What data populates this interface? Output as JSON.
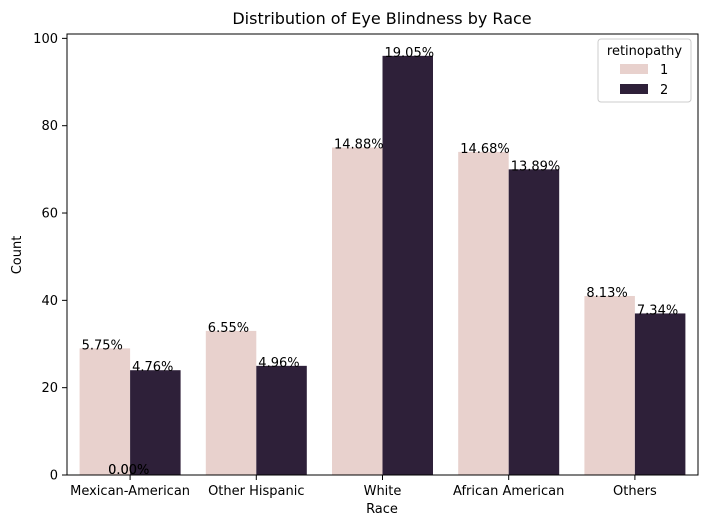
{
  "chart_data": {
    "type": "bar",
    "title": "Distribution of Eye Blindness by Race",
    "xlabel": "Race",
    "ylabel": "Count",
    "ylim": [
      0,
      101
    ],
    "yticks": [
      0,
      20,
      40,
      60,
      80,
      100
    ],
    "categories": [
      "Mexican-American",
      "Other Hispanic",
      "White",
      "African American",
      "Others"
    ],
    "series": [
      {
        "name": "1",
        "color": "#e8d1cd",
        "values": [
          29,
          33,
          75,
          74,
          41
        ],
        "labels": [
          "5.75%",
          "6.55%",
          "14.88%",
          "14.68%",
          "8.13%"
        ]
      },
      {
        "name": "2",
        "color": "#2e2039",
        "values": [
          24,
          25,
          96,
          70,
          37
        ],
        "labels": [
          "4.76%",
          "4.96%",
          "19.05%",
          "13.89%",
          "7.34%"
        ]
      }
    ],
    "extra_labels": [
      {
        "category_index": 0,
        "text": "0.00%"
      },
      {
        "category_index": 0,
        "text": "0.00%"
      }
    ],
    "legend": {
      "title": "retinopathy",
      "position": "top-right"
    },
    "grid": false
  }
}
